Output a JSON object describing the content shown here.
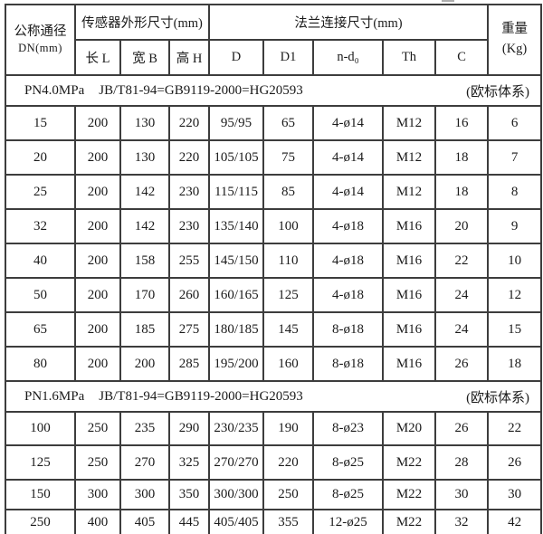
{
  "table": {
    "header": {
      "dn_line1": "公称通径",
      "dn_line2": "DN(mm)",
      "group_sensor": "传感器外形尺寸(mm)",
      "group_flange": "法兰连接尺寸(mm)",
      "weight_line1": "重量",
      "weight_line2": "(Kg)",
      "sub_headers": [
        "长 L",
        "宽 B",
        "高 H",
        "D",
        "D1",
        "n-d₀",
        "Th",
        "C"
      ]
    },
    "sections": [
      {
        "pressure": "PN4.0MPa",
        "standard": "JB/T81-94=GB9119-2000=HG20593",
        "note": "(欧标体系)",
        "rows": [
          [
            "15",
            "200",
            "130",
            "220",
            "95/95",
            "65",
            "4-ø14",
            "M12",
            "16",
            "6"
          ],
          [
            "20",
            "200",
            "130",
            "220",
            "105/105",
            "75",
            "4-ø14",
            "M12",
            "18",
            "7"
          ],
          [
            "25",
            "200",
            "142",
            "230",
            "115/115",
            "85",
            "4-ø14",
            "M12",
            "18",
            "8"
          ],
          [
            "32",
            "200",
            "142",
            "230",
            "135/140",
            "100",
            "4-ø18",
            "M16",
            "20",
            "9"
          ],
          [
            "40",
            "200",
            "158",
            "255",
            "145/150",
            "110",
            "4-ø18",
            "M16",
            "22",
            "10"
          ],
          [
            "50",
            "200",
            "170",
            "260",
            "160/165",
            "125",
            "4-ø18",
            "M16",
            "24",
            "12"
          ],
          [
            "65",
            "200",
            "185",
            "275",
            "180/185",
            "145",
            "8-ø18",
            "M16",
            "24",
            "15"
          ],
          [
            "80",
            "200",
            "200",
            "285",
            "195/200",
            "160",
            "8-ø18",
            "M16",
            "26",
            "18"
          ]
        ]
      },
      {
        "pressure": "PN1.6MPa",
        "standard": "JB/T81-94=GB9119-2000=HG20593",
        "note": "(欧标体系)",
        "rows": [
          [
            "100",
            "250",
            "235",
            "290",
            "230/235",
            "190",
            "8-ø23",
            "M20",
            "26",
            "22"
          ],
          [
            "125",
            "250",
            "270",
            "325",
            "270/270",
            "220",
            "8-ø25",
            "M22",
            "28",
            "26"
          ],
          [
            "150",
            "300",
            "300",
            "350",
            "300/300",
            "250",
            "8-ø25",
            "M22",
            "30",
            "30"
          ],
          [
            "250",
            "400",
            "405",
            "445",
            "405/405",
            "355",
            "12-ø25",
            "M22",
            "32",
            "42"
          ]
        ]
      }
    ]
  }
}
